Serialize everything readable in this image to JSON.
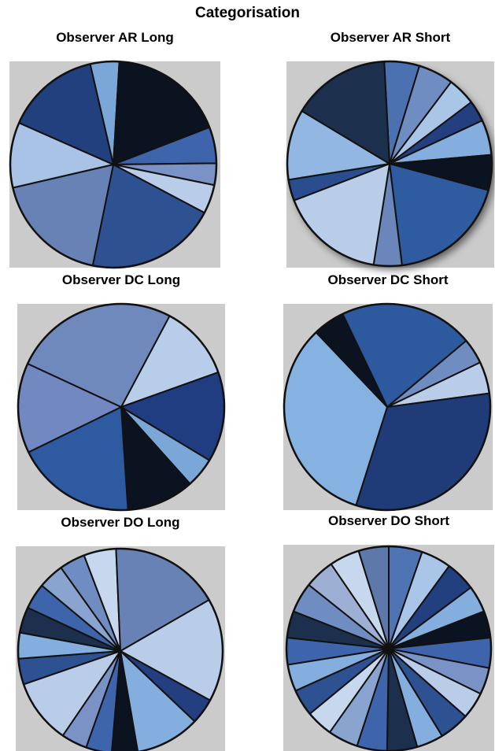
{
  "title": "Categorisation",
  "colors": {
    "panel_background": "#cbcbcb",
    "slice_stroke": "#111111"
  },
  "chart_data": [
    {
      "type": "pie",
      "title": "Observer AR Long",
      "values": [
        4,
        16,
        5,
        3,
        4,
        18,
        16,
        9,
        13
      ],
      "colors": [
        "#7aa6d8",
        "#0b1220",
        "#3e64ab",
        "#7a92c6",
        "#b9cde9",
        "#2d5191",
        "#6882b6",
        "#a8c3e6",
        "#223f7e"
      ],
      "start_angle_deg": 103,
      "shadow": false
    },
    {
      "type": "pie",
      "title": "Observer AR Short",
      "values": [
        5,
        5,
        4,
        3,
        5,
        5,
        17,
        4,
        15,
        3,
        10,
        14
      ],
      "colors": [
        "#4c71b0",
        "#6f8dc1",
        "#aac6e6",
        "#233f7f",
        "#84aede",
        "#0b1220",
        "#2f5ba0",
        "#6a86ba",
        "#b9cde9",
        "#2a4d8f",
        "#92b7e3",
        "#1c2f4d"
      ],
      "start_angle_deg": 93,
      "shadow": true
    },
    {
      "type": "pie",
      "title": "Observer DC Long",
      "values": [
        10,
        12,
        4,
        9,
        16,
        12,
        22
      ],
      "colors": [
        "#b8cde9",
        "#1f3d80",
        "#7aa6d8",
        "#0b1220",
        "#2d5aa0",
        "#7188c0",
        "#6f89bd"
      ],
      "start_angle_deg": 62,
      "shadow": false
    },
    {
      "type": "pie",
      "title": "Observer DC Short",
      "values": [
        4,
        5,
        32,
        33,
        5,
        21
      ],
      "colors": [
        "#6f8dc1",
        "#b9cde9",
        "#1f3b78",
        "#86b2e1",
        "#0b1220",
        "#2d5a9f"
      ],
      "start_angle_deg": 40,
      "shadow": false
    },
    {
      "type": "pie",
      "title": "Observer DO Long",
      "values": [
        16,
        4,
        10,
        4,
        4,
        4,
        10,
        4,
        4,
        4,
        4,
        4,
        4,
        5,
        17
      ],
      "colors": [
        "#b9cde9",
        "#233f7f",
        "#84aede",
        "#0b1220",
        "#3e64ab",
        "#7a92c6",
        "#b9cde9",
        "#2d5191",
        "#84aede",
        "#1c2f4d",
        "#3e64ab",
        "#8aa4d0",
        "#6f8dc1",
        "#c7d8ee",
        "#6882b6"
      ],
      "start_angle_deg": 30,
      "shadow": false
    },
    {
      "type": "pie",
      "title": "Observer DO Short",
      "values": [
        5,
        4.5,
        4.5,
        4,
        4,
        4.5,
        4,
        4,
        4.5,
        4,
        4.5,
        4.5,
        4.5,
        4,
        4,
        4,
        4,
        4,
        4.5,
        4.5,
        4.5,
        4.5
      ],
      "colors": [
        "#4f74b3",
        "#a9c5e8",
        "#223f7f",
        "#84aede",
        "#0b1220",
        "#3e64ab",
        "#7a92c6",
        "#b9cde9",
        "#2d5191",
        "#84aede",
        "#1c2f4d",
        "#3e64ab",
        "#8aa4d0",
        "#c7d8ee",
        "#2d5191",
        "#84aede",
        "#3e64ab",
        "#1c2f4d",
        "#6f8dc1",
        "#9db0d4",
        "#c7d8ee",
        "#5e78aa"
      ],
      "start_angle_deg": 90,
      "shadow": false
    }
  ]
}
